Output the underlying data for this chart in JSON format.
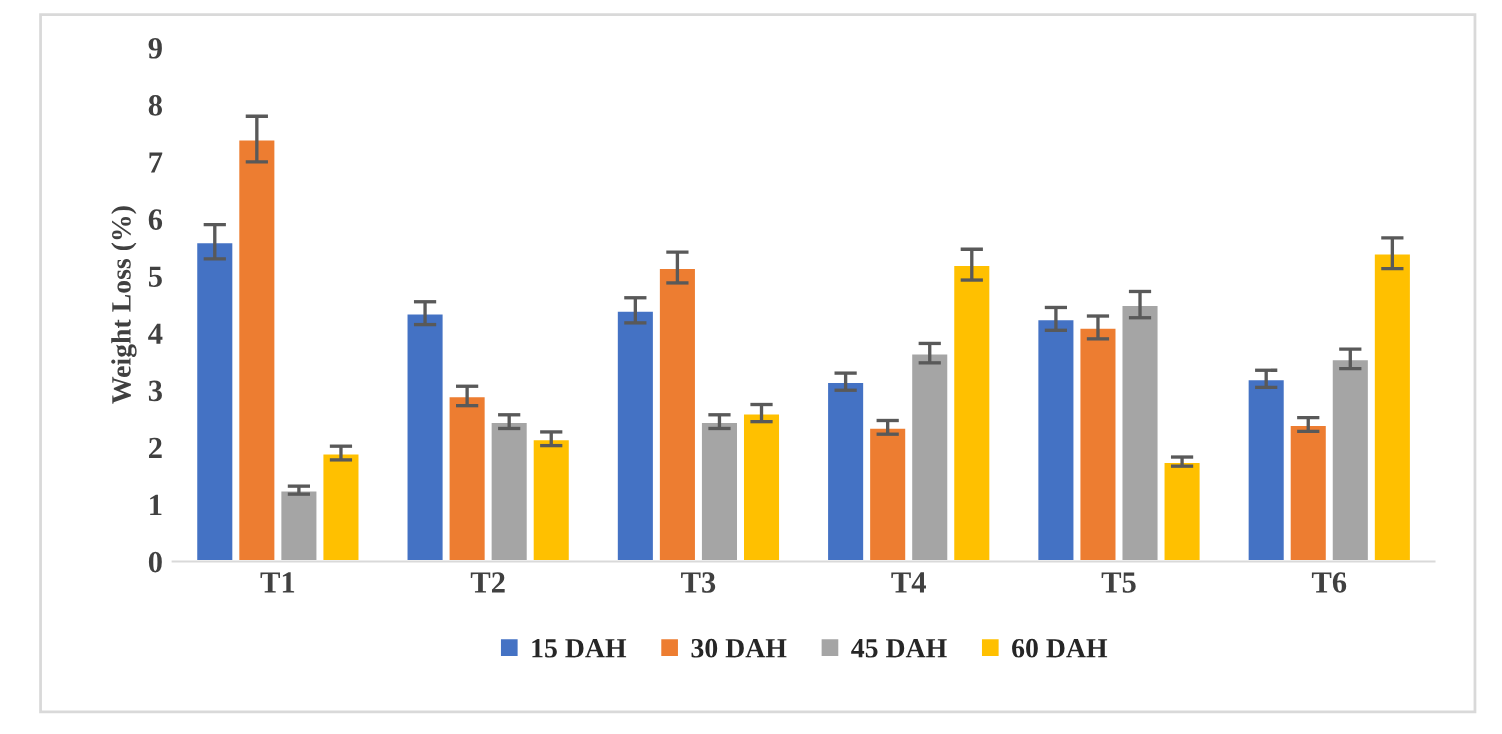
{
  "chart_data": {
    "type": "bar",
    "ylabel": "Weight Loss (%)",
    "categories": [
      "T1",
      "T2",
      "T3",
      "T4",
      "T5",
      "T6"
    ],
    "series": [
      {
        "name": "15 DAH",
        "color": "#4472c4",
        "values": [
          5.6,
          4.35,
          4.4,
          3.15,
          4.25,
          3.2
        ],
        "errors": [
          0.3,
          0.2,
          0.22,
          0.15,
          0.2,
          0.15
        ]
      },
      {
        "name": "30 DAH",
        "color": "#ed7d31",
        "values": [
          7.4,
          2.9,
          5.15,
          2.35,
          4.1,
          2.4
        ],
        "errors": [
          0.4,
          0.17,
          0.27,
          0.12,
          0.2,
          0.12
        ]
      },
      {
        "name": "45 DAH",
        "color": "#a5a5a5",
        "values": [
          1.25,
          2.45,
          2.45,
          3.65,
          4.5,
          3.55
        ],
        "errors": [
          0.07,
          0.12,
          0.12,
          0.17,
          0.23,
          0.17
        ]
      },
      {
        "name": "60 DAH",
        "color": "#ffc000",
        "values": [
          1.9,
          2.15,
          2.6,
          5.2,
          1.75,
          5.4
        ],
        "errors": [
          0.12,
          0.12,
          0.15,
          0.27,
          0.08,
          0.27
        ]
      }
    ],
    "ylim": [
      0,
      9
    ],
    "yticks": [
      0,
      1,
      2,
      3,
      4,
      5,
      6,
      7,
      8,
      9
    ],
    "grid": false,
    "legend": "bottom"
  }
}
